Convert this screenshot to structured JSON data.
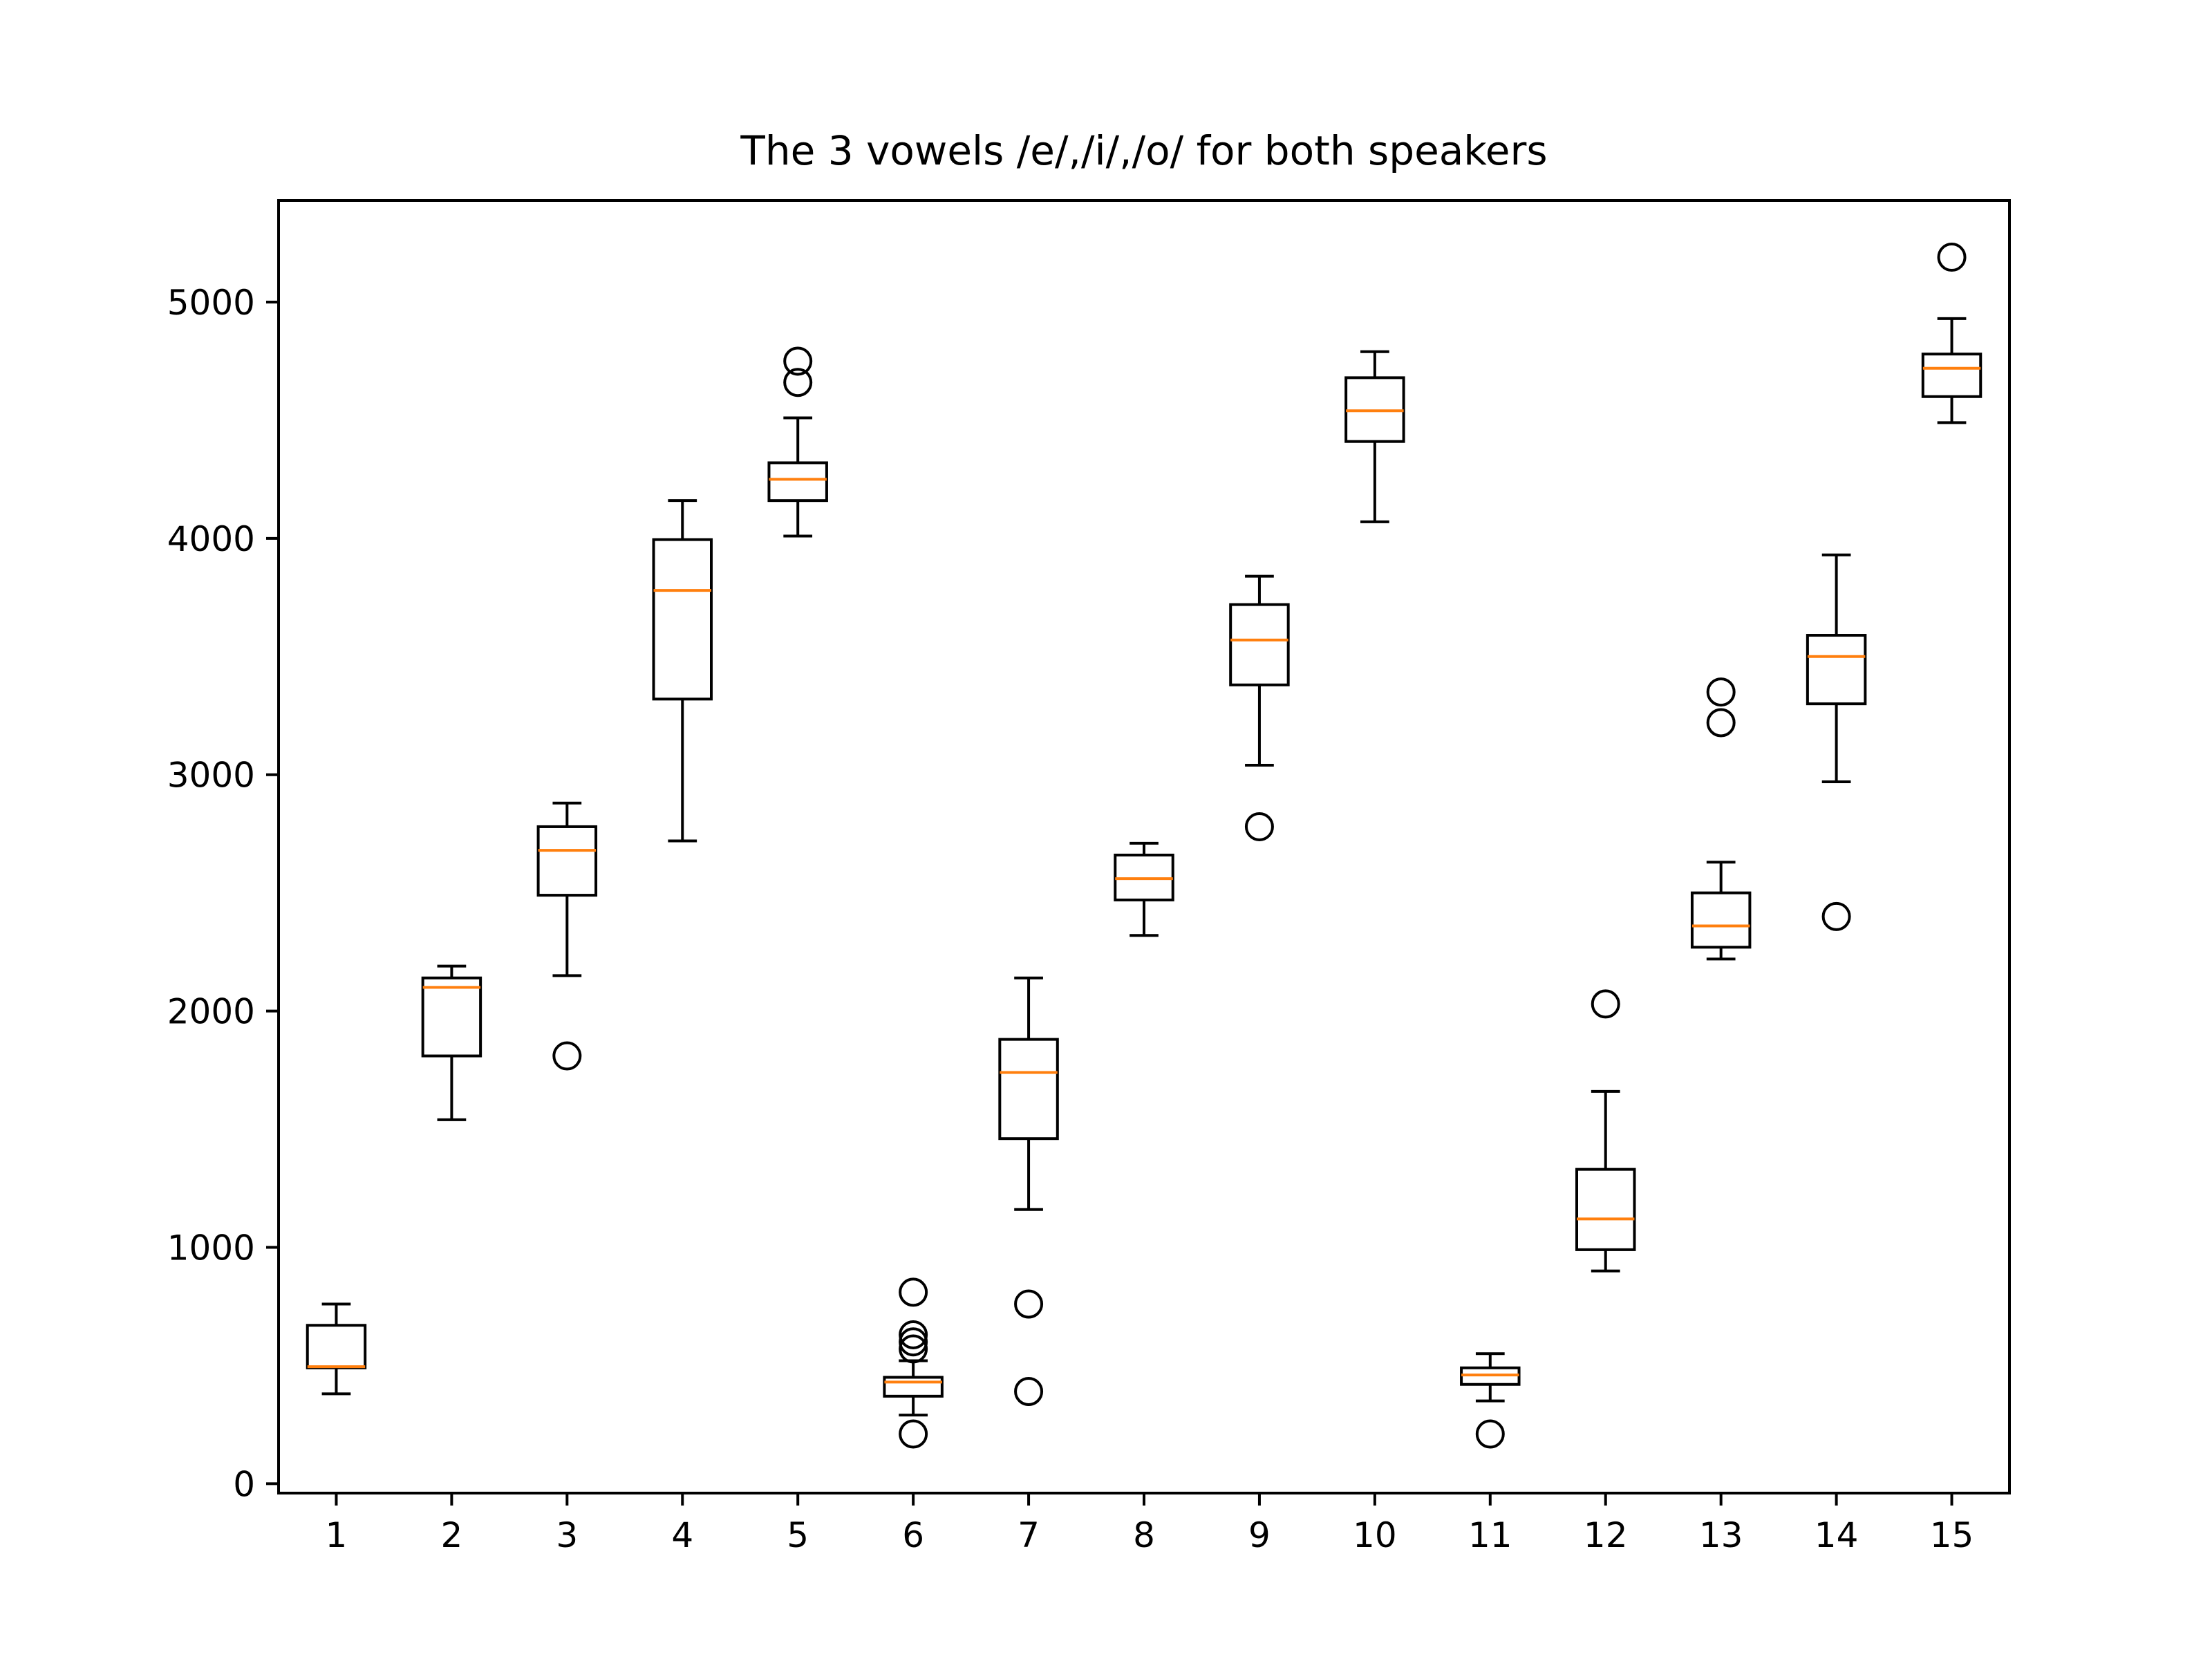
{
  "chart_data": {
    "type": "box",
    "title": "The 3 vowels /e/,/i/,/o/ for both speakers",
    "xlabel": "",
    "ylabel": "",
    "categories": [
      "1",
      "2",
      "3",
      "4",
      "5",
      "6",
      "7",
      "8",
      "9",
      "10",
      "11",
      "12",
      "13",
      "14",
      "15"
    ],
    "yticks": [
      0,
      1000,
      2000,
      3000,
      4000,
      5000
    ],
    "ylim": [
      -40,
      5430
    ],
    "grid": false,
    "colors": {
      "box": "#000000",
      "median": "#ff7f0e",
      "axes": "#000000"
    },
    "boxes": [
      {
        "whislo": 380,
        "q1": 490,
        "med": 495,
        "q3": 670,
        "whishi": 760,
        "fliers": []
      },
      {
        "whislo": 1540,
        "q1": 1810,
        "med": 2100,
        "q3": 2140,
        "whishi": 2190,
        "fliers": []
      },
      {
        "whislo": 2150,
        "q1": 2490,
        "med": 2680,
        "q3": 2780,
        "whishi": 2880,
        "fliers": [
          1810
        ]
      },
      {
        "whislo": 2720,
        "q1": 3320,
        "med": 3780,
        "q3": 3995,
        "whishi": 4160,
        "fliers": []
      },
      {
        "whislo": 4010,
        "q1": 4160,
        "med": 4250,
        "q3": 4320,
        "whishi": 4510,
        "fliers": [
          4660,
          4750
        ]
      },
      {
        "whislo": 290,
        "q1": 370,
        "med": 430,
        "q3": 450,
        "whishi": 520,
        "fliers": [
          210,
          570,
          600,
          630,
          810
        ]
      },
      {
        "whislo": 1160,
        "q1": 1460,
        "med": 1740,
        "q3": 1880,
        "whishi": 2140,
        "fliers": [
          390,
          760
        ]
      },
      {
        "whislo": 2320,
        "q1": 2470,
        "med": 2560,
        "q3": 2660,
        "whishi": 2710,
        "fliers": []
      },
      {
        "whislo": 3040,
        "q1": 3380,
        "med": 3570,
        "q3": 3720,
        "whishi": 3840,
        "fliers": [
          2780
        ]
      },
      {
        "whislo": 4070,
        "q1": 4410,
        "med": 4540,
        "q3": 4680,
        "whishi": 4790,
        "fliers": []
      },
      {
        "whislo": 350,
        "q1": 420,
        "med": 460,
        "q3": 490,
        "whishi": 550,
        "fliers": [
          210
        ]
      },
      {
        "whislo": 900,
        "q1": 990,
        "med": 1120,
        "q3": 1330,
        "whishi": 1660,
        "fliers": [
          2030
        ]
      },
      {
        "whislo": 2220,
        "q1": 2270,
        "med": 2360,
        "q3": 2500,
        "whishi": 2630,
        "fliers": [
          3220,
          3350
        ]
      },
      {
        "whislo": 2970,
        "q1": 3300,
        "med": 3500,
        "q3": 3590,
        "whishi": 3930,
        "fliers": [
          2400
        ]
      },
      {
        "whislo": 4490,
        "q1": 4600,
        "med": 4720,
        "q3": 4780,
        "whishi": 4930,
        "fliers": [
          5190
        ]
      }
    ]
  }
}
